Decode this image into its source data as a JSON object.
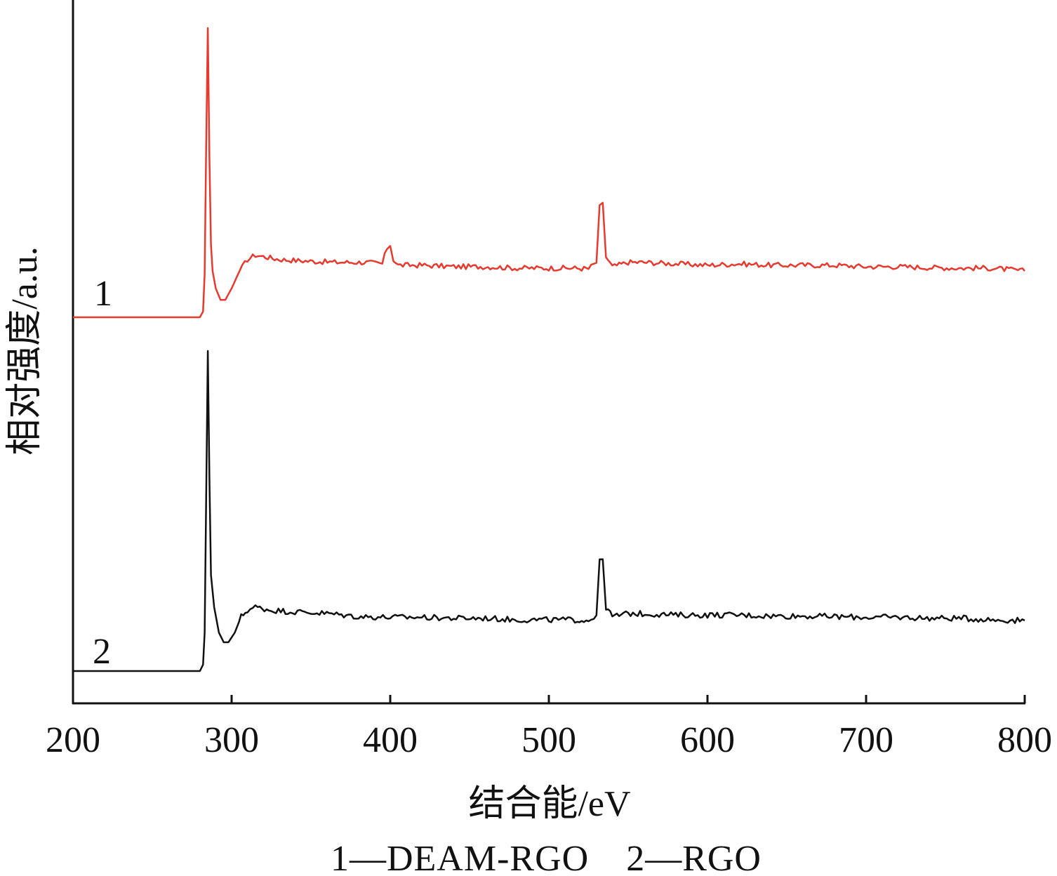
{
  "chart_data": {
    "type": "line",
    "xlabel": "结合能/eV",
    "ylabel": "相对强度/a.u.",
    "xlim": [
      200,
      800
    ],
    "x_ticks": [
      "200",
      "300",
      "400",
      "500",
      "600",
      "700",
      "800"
    ],
    "y_ticks": [],
    "grid": false,
    "legend_text": "1—DEAM-RGO　2—RGO",
    "series": [
      {
        "label": "1",
        "color": "#e8392e",
        "baseline": 0.0,
        "points": [
          [
            200,
            0.0
          ],
          [
            280,
            0.0
          ],
          [
            282,
            0.02
          ],
          [
            283,
            0.15
          ],
          [
            284,
            0.6
          ],
          [
            285,
            1.0
          ],
          [
            286,
            0.55
          ],
          [
            287,
            0.25
          ],
          [
            288,
            0.16
          ],
          [
            290,
            0.1
          ],
          [
            293,
            0.06
          ],
          [
            296,
            0.06
          ],
          [
            300,
            0.1
          ],
          [
            305,
            0.16
          ],
          [
            310,
            0.2
          ],
          [
            315,
            0.215
          ],
          [
            320,
            0.21
          ],
          [
            330,
            0.2
          ],
          [
            345,
            0.195
          ],
          [
            365,
            0.19
          ],
          [
            385,
            0.19
          ],
          [
            395,
            0.185
          ],
          [
            398,
            0.24
          ],
          [
            400,
            0.25
          ],
          [
            402,
            0.2
          ],
          [
            405,
            0.18
          ],
          [
            420,
            0.18
          ],
          [
            440,
            0.175
          ],
          [
            460,
            0.175
          ],
          [
            480,
            0.17
          ],
          [
            500,
            0.17
          ],
          [
            515,
            0.17
          ],
          [
            525,
            0.168
          ],
          [
            530,
            0.19
          ],
          [
            532,
            0.38
          ],
          [
            534,
            0.39
          ],
          [
            536,
            0.21
          ],
          [
            540,
            0.175
          ],
          [
            550,
            0.19
          ],
          [
            560,
            0.19
          ],
          [
            580,
            0.185
          ],
          [
            600,
            0.18
          ],
          [
            620,
            0.185
          ],
          [
            640,
            0.18
          ],
          [
            660,
            0.18
          ],
          [
            680,
            0.18
          ],
          [
            700,
            0.175
          ],
          [
            720,
            0.175
          ],
          [
            740,
            0.172
          ],
          [
            760,
            0.17
          ],
          [
            780,
            0.17
          ],
          [
            790,
            0.165
          ],
          [
            800,
            0.16
          ]
        ]
      },
      {
        "label": "2",
        "color": "#111111",
        "baseline": 0.0,
        "points": [
          [
            200,
            0.0
          ],
          [
            280,
            0.0
          ],
          [
            282,
            0.02
          ],
          [
            283,
            0.12
          ],
          [
            284,
            0.55
          ],
          [
            285,
            1.0
          ],
          [
            286,
            0.6
          ],
          [
            287,
            0.3
          ],
          [
            289,
            0.2
          ],
          [
            292,
            0.12
          ],
          [
            295,
            0.09
          ],
          [
            298,
            0.09
          ],
          [
            302,
            0.12
          ],
          [
            306,
            0.17
          ],
          [
            310,
            0.19
          ],
          [
            315,
            0.2
          ],
          [
            325,
            0.19
          ],
          [
            340,
            0.185
          ],
          [
            360,
            0.18
          ],
          [
            380,
            0.17
          ],
          [
            400,
            0.168
          ],
          [
            420,
            0.168
          ],
          [
            440,
            0.165
          ],
          [
            460,
            0.165
          ],
          [
            480,
            0.16
          ],
          [
            500,
            0.16
          ],
          [
            515,
            0.16
          ],
          [
            525,
            0.158
          ],
          [
            530,
            0.175
          ],
          [
            532,
            0.34
          ],
          [
            534,
            0.35
          ],
          [
            536,
            0.2
          ],
          [
            540,
            0.17
          ],
          [
            550,
            0.18
          ],
          [
            565,
            0.178
          ],
          [
            580,
            0.175
          ],
          [
            600,
            0.175
          ],
          [
            620,
            0.175
          ],
          [
            640,
            0.172
          ],
          [
            660,
            0.172
          ],
          [
            680,
            0.17
          ],
          [
            700,
            0.168
          ],
          [
            720,
            0.168
          ],
          [
            740,
            0.165
          ],
          [
            760,
            0.165
          ],
          [
            780,
            0.16
          ],
          [
            800,
            0.158
          ]
        ]
      }
    ]
  }
}
